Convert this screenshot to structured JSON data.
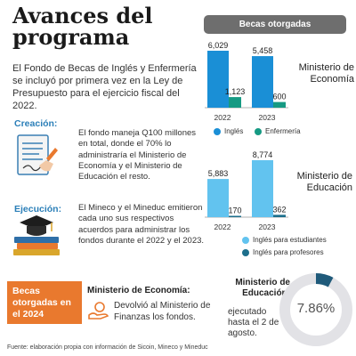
{
  "title": "Avances del programa",
  "intro": "El Fondo de Becas de Inglés y Enfermería se incluyó por primera vez en la Ley de Presupuesto para el ejercicio fiscal del 2022.",
  "creation": {
    "label": "Creación:",
    "text": "El fondo maneja Q100 millones en total, donde el 70% lo administraría el Ministerio de Economía y el Ministerio de Educación el resto."
  },
  "execution": {
    "label": "Ejecución:",
    "text": "El Mineco y el Mineduc emitieron cada uno sus respectivos acuerdos para administrar los fondos durante el 2022 y el 2023."
  },
  "becas_header": "Becas otorgadas",
  "colors": {
    "blue": "#1a8fd6",
    "green": "#169a83",
    "light_blue": "#62c3ef",
    "dark_teal": "#1d6f8c",
    "orange": "#e9792e",
    "donut_track": "#e2e2e6",
    "donut_fill": "#1f5a7a"
  },
  "chart_data": [
    {
      "type": "bar",
      "title": "Ministerio de Economía",
      "categories": [
        "2022",
        "2023"
      ],
      "series": [
        {
          "name": "Inglés",
          "values": [
            6029,
            5458
          ]
        },
        {
          "name": "Enfermería",
          "values": [
            1123,
            600
          ]
        }
      ],
      "legend": "bottom"
    },
    {
      "type": "bar",
      "title": "Ministerio de Educación",
      "categories": [
        "2022",
        "2023"
      ],
      "series": [
        {
          "name": "Inglés para estudiantes",
          "values": [
            5883,
            8774
          ]
        },
        {
          "name": "Inglés para profesores",
          "values": [
            170,
            362
          ]
        }
      ],
      "legend": "bottom"
    },
    {
      "type": "pie",
      "title": "Ministerio de Educación:",
      "values": [
        7.86
      ],
      "display_value": "7.86%",
      "note": "ejecutado hasta el 2 de agosto."
    }
  ],
  "labels": {
    "econ": {
      "v2022_a": "6,029",
      "v2022_b": "1,123",
      "v2023_a": "5,458",
      "v2023_b": "600",
      "legend_a": "Inglés",
      "legend_b": "Enfermería"
    },
    "edu": {
      "v2022_a": "5,883",
      "v2022_b": "170",
      "v2023_a": "8,774",
      "v2023_b": "362",
      "legend_a": "Inglés para estudiantes",
      "legend_b": "Inglés para profesores"
    },
    "year_2022": "2022",
    "year_2023": "2023"
  },
  "bottom": {
    "box_label": "Becas otorgadas en el 2024",
    "econ_title": "Ministerio de Economía:",
    "econ_text": "Devolvió al Ministerio de Finanzas los fondos.",
    "edu_title": "Ministerio de Educación:",
    "edu_text": "ejecutado hasta el 2 de agosto.",
    "donut_value": "7.86%"
  },
  "source": "Fuente: elaboración propia con información de Sicoin, Mineco y Mineduc"
}
